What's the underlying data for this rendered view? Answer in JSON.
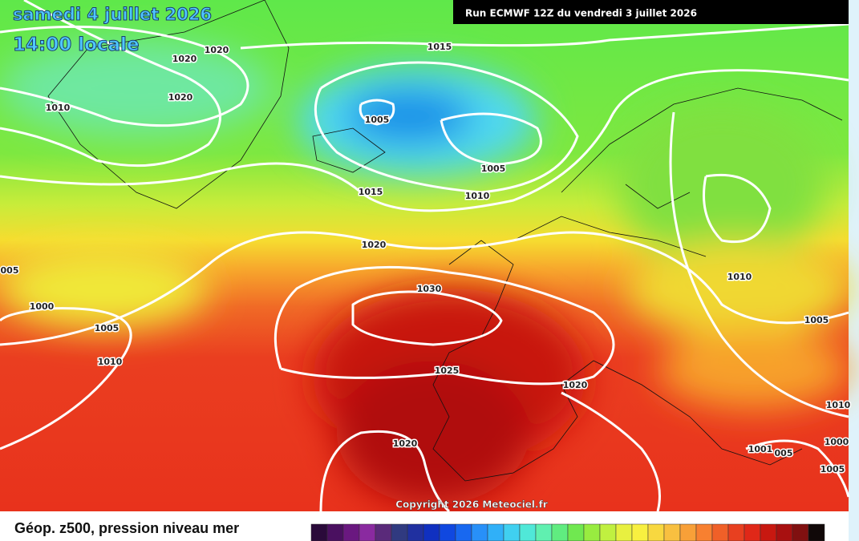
{
  "header": {
    "title": "samedi 4 juillet 2026",
    "time": "14:00 locale",
    "run": "Run ECMWF 12Z du vendredi 3 juillet 2026"
  },
  "isobar_labels": [
    "1020",
    "1020",
    "1010",
    "1020",
    "1015",
    "1005",
    "1005",
    "1015",
    "1010",
    "1020",
    "005",
    "1030",
    "1000",
    "1005",
    "1010",
    "1010",
    "1005",
    "1025",
    "1020",
    "1010",
    "1020",
    "1000",
    "1001",
    "005",
    "1005"
  ],
  "copyright": "Copyright 2026 Meteociel.fr",
  "legend": {
    "label": "Géop. z500, pression niveau mer",
    "colors": [
      "#2a0a3a",
      "#4a1060",
      "#6a1880",
      "#8a2aa0",
      "#5a2a7a",
      "#303a80",
      "#2030a0",
      "#1030c0",
      "#1048e0",
      "#1868f0",
      "#2890f8",
      "#30b0f8",
      "#40d0f0",
      "#50e8d8",
      "#60f0b0",
      "#60ec80",
      "#70e850",
      "#98ec40",
      "#c0f040",
      "#e8f040",
      "#f8f040",
      "#f8d840",
      "#f8c040",
      "#f8a038",
      "#f88030",
      "#f06028",
      "#e84020",
      "#e02818",
      "#c81810",
      "#a81010",
      "#801010",
      "#100808"
    ]
  }
}
